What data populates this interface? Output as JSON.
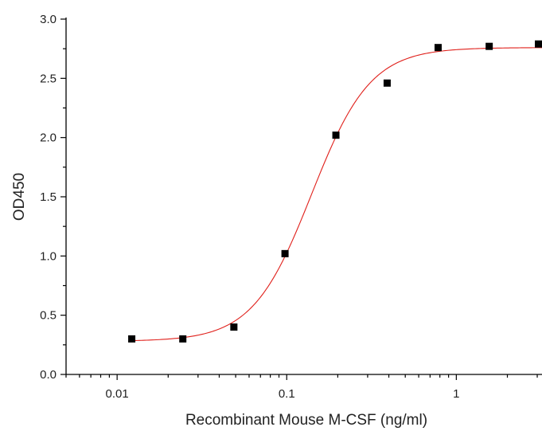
{
  "chart_data": {
    "type": "scatter",
    "title": "",
    "xlabel": "Recombinant Mouse M-CSF (ng/ml)",
    "ylabel": "OD450",
    "xscale": "log",
    "xlim": [
      0.005,
      3.2
    ],
    "ylim": [
      0,
      3.0
    ],
    "x_ticks": [
      0.01,
      0.1,
      1
    ],
    "x_tick_labels": [
      "0.01",
      "0.1",
      "1"
    ],
    "y_ticks": [
      0,
      0.5,
      1.0,
      1.5,
      2.0,
      2.5,
      3.0
    ],
    "y_tick_labels": [
      "0.0",
      "0.5",
      "1.0",
      "1.5",
      "2.0",
      "2.5",
      "3.0"
    ],
    "grid": false,
    "legend": "none",
    "series": [
      {
        "marker": "square",
        "color": "#000000",
        "x": [
          0.0122,
          0.0244,
          0.0488,
          0.0977,
          0.195,
          0.391,
          0.781,
          1.5625,
          3.125
        ],
        "y": [
          0.3,
          0.3,
          0.4,
          1.02,
          2.02,
          2.46,
          2.76,
          2.77,
          2.79
        ]
      }
    ],
    "fit": {
      "type": "4PL",
      "color": "#e0201b",
      "bottom": 0.28,
      "top": 2.76,
      "ec50": 0.14,
      "hill": 2.5,
      "x_range": [
        0.0122,
        3.2
      ]
    }
  }
}
